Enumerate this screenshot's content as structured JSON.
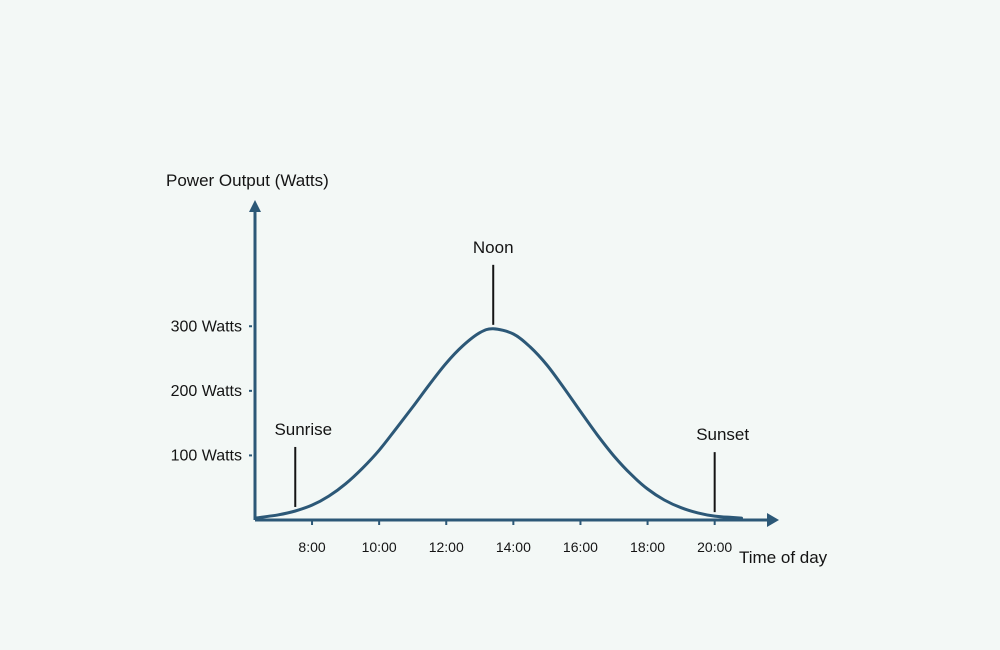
{
  "chart_data": {
    "type": "line",
    "ylabel": "Power Output (Watts)",
    "xlabel": "Time of day",
    "x_ticks": [
      "8:00",
      "10:00",
      "12:00",
      "14:00",
      "16:00",
      "18:00",
      "20:00"
    ],
    "y_ticks": [
      "100 Watts",
      "200 Watts",
      "300 Watts"
    ],
    "y_tick_values": [
      100,
      200,
      300
    ],
    "xlim": [
      6.3,
      21.5
    ],
    "ylim": [
      0,
      480
    ],
    "series": [
      {
        "x": [
          6.3,
          7.0,
          7.5,
          8.0,
          8.5,
          9.0,
          9.5,
          10.0,
          10.5,
          11.0,
          11.5,
          12.0,
          12.5,
          13.0,
          13.4,
          14.0,
          14.5,
          15.0,
          15.5,
          16.0,
          16.5,
          17.0,
          17.5,
          18.0,
          18.5,
          19.0,
          19.5,
          20.0,
          20.5,
          20.8
        ],
        "y": [
          3,
          8,
          14,
          23,
          37,
          56,
          80,
          108,
          141,
          175,
          210,
          243,
          270,
          290,
          296,
          288,
          268,
          240,
          205,
          168,
          132,
          99,
          71,
          48,
          31,
          19,
          11,
          6,
          4,
          3
        ]
      }
    ],
    "annotations": [
      {
        "text": "Sunrise",
        "x": 7.5,
        "y": 14
      },
      {
        "text": "Noon",
        "x": 13.4,
        "y": 296
      },
      {
        "text": "Sunset",
        "x": 20.0,
        "y": 6
      }
    ],
    "colors": {
      "line": "#2c5877",
      "axis": "#2c5877",
      "text": "#141414",
      "background": "#f3f8f6"
    },
    "grid": false,
    "legend": "none"
  }
}
